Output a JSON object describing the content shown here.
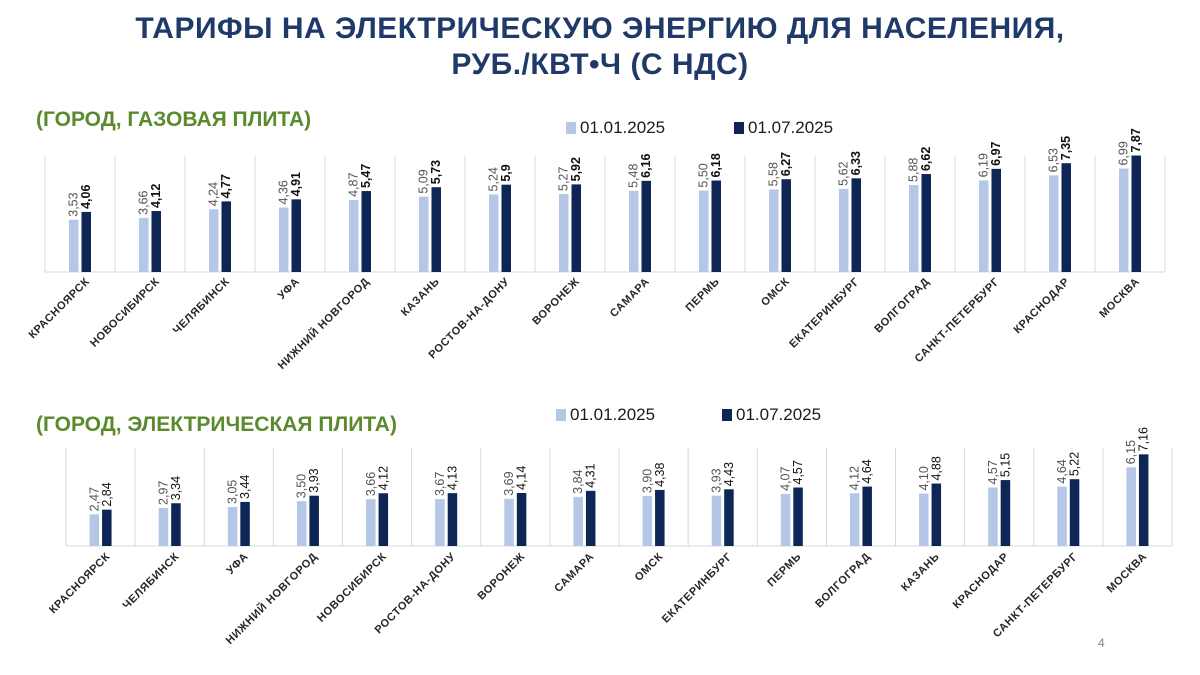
{
  "title_line1": "ТАРИФЫ НА ЭЛЕКТРИЧЕСКУЮ ЭНЕРГИЮ ДЛЯ НАСЕЛЕНИЯ,",
  "title_line2": "РУБ./КВТ•Ч (С НДС)",
  "page_number": "4",
  "colors": {
    "series_light": "#b4c7e7",
    "series_dark": "#0e2656",
    "title": "#1f3a68",
    "subtitle": "#5a8a2b",
    "grid": "#d9d9d9"
  },
  "chart_data": [
    {
      "type": "bar",
      "title": "(ГОРОД, ГАЗОВАЯ ПЛИТА)",
      "categories": [
        "КРАСНОЯРСК",
        "НОВОСИБИРСК",
        "ЧЕЛЯБИНСК",
        "УФА",
        "НИЖНИЙ НОВГОРОД",
        "КАЗАНЬ",
        "РОСТОВ-НА-ДОНУ",
        "ВОРОНЕЖ",
        "САМАРА",
        "ПЕРМЬ",
        "ОМСК",
        "ЕКАТЕРИНБУРГ",
        "ВОЛГОГРАД",
        "САНКТ-ПЕТЕРБУРГ",
        "КРАСНОДАР",
        "МОСКВА"
      ],
      "series": [
        {
          "name": "01.01.2025",
          "values": [
            3.53,
            3.66,
            4.24,
            4.36,
            4.87,
            5.09,
            5.24,
            5.27,
            5.48,
            5.5,
            5.58,
            5.62,
            5.88,
            6.19,
            6.53,
            6.99
          ],
          "labels": [
            "3,53",
            "3,66",
            "4,24",
            "4,36",
            "4,87",
            "5,09",
            "5,24",
            "5,27",
            "5,48",
            "5,50",
            "5,58",
            "5,62",
            "5,88",
            "6,19",
            "6,53",
            "6,99"
          ]
        },
        {
          "name": "01.07.2025",
          "values": [
            4.06,
            4.12,
            4.77,
            4.91,
            5.47,
            5.73,
            5.9,
            5.92,
            6.16,
            6.18,
            6.27,
            6.33,
            6.62,
            6.97,
            7.35,
            7.87
          ],
          "labels": [
            "4,06",
            "4,12",
            "4,77",
            "4,91",
            "5,47",
            "5,73",
            "5,9",
            "5,92",
            "6,16",
            "6,18",
            "6,27",
            "6,33",
            "6,62",
            "6,97",
            "7,35",
            "7,87"
          ]
        }
      ],
      "ylim": [
        0,
        8
      ],
      "grid": "vertical separators",
      "legend": "top"
    },
    {
      "type": "bar",
      "title": "(ГОРОД, ЭЛЕКТРИЧЕСКАЯ ПЛИТА)",
      "categories": [
        "КРАСНОЯРСК",
        "ЧЕЛЯБИНСК",
        "УФА",
        "НИЖНИЙ НОВГОРОД",
        "НОВОСИБИРСК",
        "РОСТОВ-НА-ДОНУ",
        "ВОРОНЕЖ",
        "САМАРА",
        "ОМСК",
        "ЕКАТЕРИНБУРГ",
        "ПЕРМЬ",
        "ВОЛГОГРАД",
        "КАЗАНЬ",
        "КРАСНОДАР",
        "САНКТ-ПЕТЕРБУРГ",
        "МОСКВА"
      ],
      "series": [
        {
          "name": "01.01.2025",
          "values": [
            2.47,
            2.97,
            3.05,
            3.5,
            3.66,
            3.67,
            3.69,
            3.84,
            3.9,
            3.93,
            4.07,
            4.12,
            4.1,
            4.57,
            4.64,
            6.15
          ],
          "labels": [
            "2,47",
            "2,97",
            "3,05",
            "3,50",
            "3,66",
            "3,67",
            "3,69",
            "3,84",
            "3,90",
            "3,93",
            "4,07",
            "4,12",
            "4,10",
            "4,57",
            "4,64",
            "6,15"
          ]
        },
        {
          "name": "01.07.2025",
          "values": [
            2.84,
            3.34,
            3.44,
            3.93,
            4.12,
            4.13,
            4.14,
            4.31,
            4.38,
            4.43,
            4.57,
            4.64,
            4.88,
            5.15,
            5.22,
            7.16
          ],
          "labels": [
            "2,84",
            "3,34",
            "3,44",
            "3,93",
            "4,12",
            "4,13",
            "4,14",
            "4,31",
            "4,38",
            "4,43",
            "4,57",
            "4,64",
            "4,88",
            "5,15",
            "5,22",
            "7,16"
          ]
        }
      ],
      "ylim": [
        0,
        7.5
      ],
      "grid": "vertical separators",
      "legend": "top"
    }
  ]
}
